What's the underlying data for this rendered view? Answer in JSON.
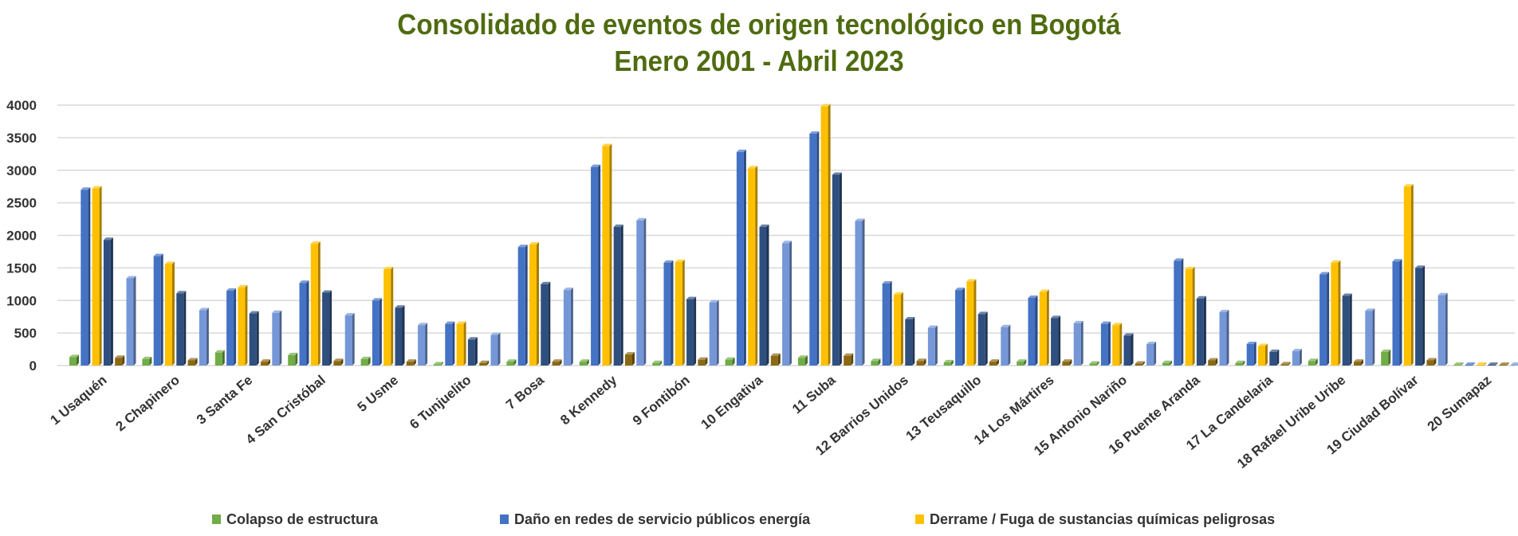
{
  "chart_data": {
    "type": "bar",
    "title": "Consolidado de eventos de origen tecnológico en Bogotá",
    "subtitle": "Enero 2001 - Abril 2023",
    "xlabel": "",
    "ylabel": "",
    "ylim": [
      0,
      4000
    ],
    "yticks": [
      0,
      500,
      1000,
      1500,
      2000,
      2500,
      3000,
      3500,
      4000
    ],
    "grid": true,
    "legend": "bottom",
    "categories": [
      "1 Usaquén",
      "2 Chapinero",
      "3 Santa Fe",
      "4 San Cristóbal",
      "5 Usme",
      "6 Tunjuelito",
      "7 Bosa",
      "8 Kennedy",
      "9 Fontibón",
      "10 Engativa",
      "11 Suba",
      "12 Barrios Unidos",
      "13 Teusaquillo",
      "14 Los Mártires",
      "15 Antonio Nariño",
      "16 Puente Aranda",
      "17 La Candelaria",
      "18 Rafael Uribe Uribe",
      "19 Ciudad Bolívar",
      "20 Sumapaz"
    ],
    "series": [
      {
        "name": "Colapso de estructura",
        "color": "#70ad47",
        "legend": true,
        "values": [
          130,
          100,
          200,
          160,
          100,
          20,
          60,
          60,
          40,
          90,
          120,
          70,
          50,
          60,
          30,
          40,
          40,
          70,
          210,
          5
        ]
      },
      {
        "name": "Daño en redes de servicio públicos energía",
        "color": "#4472c4",
        "legend": true,
        "values": [
          2700,
          1680,
          1150,
          1270,
          1000,
          640,
          1820,
          3050,
          1580,
          3280,
          3560,
          1260,
          1160,
          1040,
          640,
          1610,
          330,
          1400,
          1600,
          10
        ]
      },
      {
        "name": "Derrame / Fuga de sustancias químicas peligrosas",
        "color": "#ffc000",
        "legend": true,
        "values": [
          2720,
          1560,
          1200,
          1870,
          1480,
          640,
          1860,
          3370,
          1590,
          3030,
          3980,
          1090,
          1290,
          1130,
          620,
          1480,
          300,
          1580,
          2750,
          10
        ]
      },
      {
        "name": "",
        "color": "#2f4f7f",
        "legend": false,
        "values": [
          1930,
          1110,
          800,
          1120,
          890,
          400,
          1250,
          2130,
          1020,
          2130,
          2930,
          710,
          790,
          730,
          460,
          1030,
          210,
          1070,
          1500,
          10
        ]
      },
      {
        "name": "",
        "color": "#8b6914",
        "legend": false,
        "values": [
          120,
          80,
          60,
          70,
          60,
          40,
          60,
          170,
          90,
          150,
          150,
          70,
          60,
          60,
          30,
          80,
          20,
          60,
          80,
          5
        ]
      },
      {
        "name": "",
        "color": "#7597d8",
        "legend": false,
        "values": [
          1340,
          850,
          810,
          770,
          620,
          470,
          1160,
          2230,
          970,
          1880,
          2220,
          580,
          590,
          650,
          330,
          820,
          220,
          840,
          1080,
          10
        ]
      }
    ]
  }
}
